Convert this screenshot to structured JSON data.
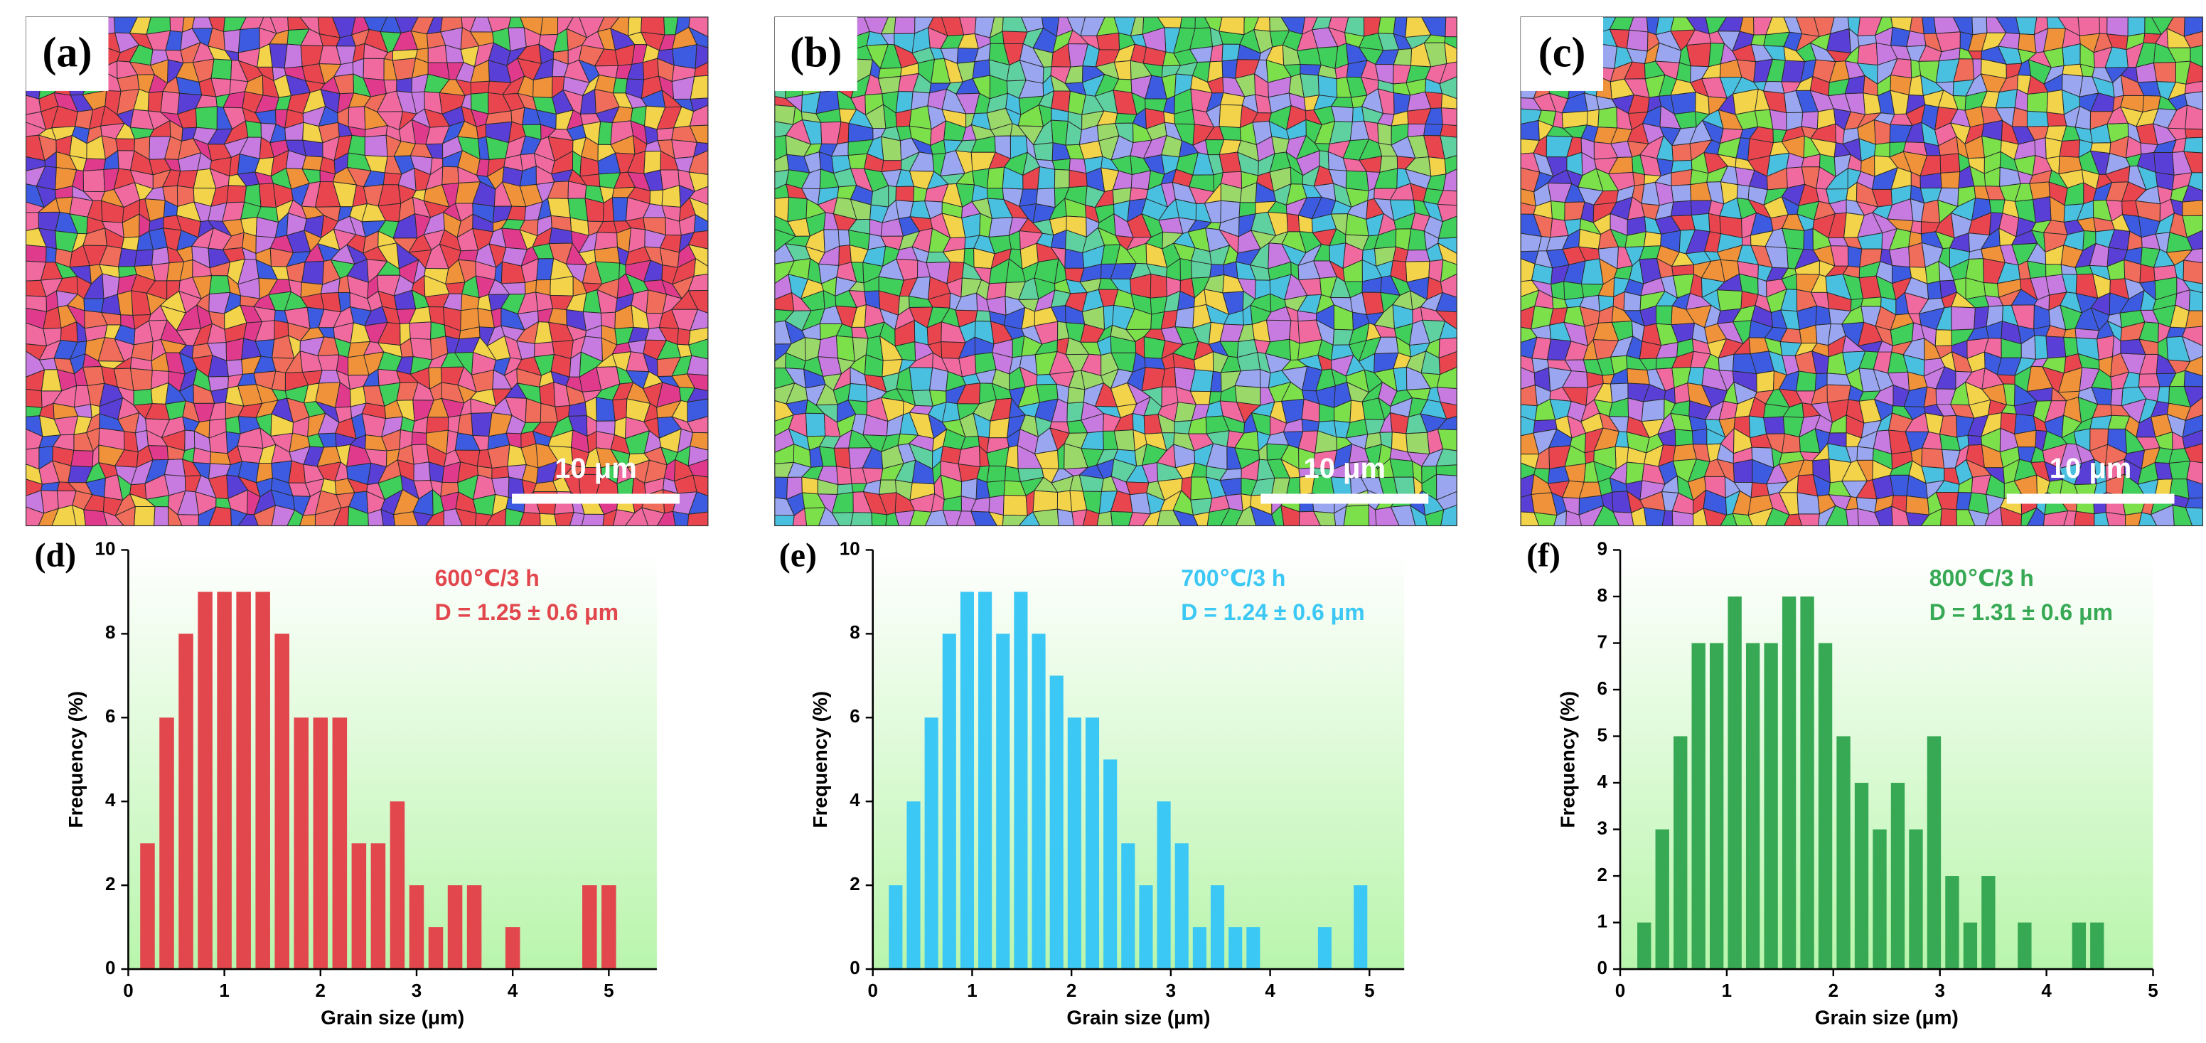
{
  "panels": [
    {
      "label": "(a)",
      "scale_bar": "10 μm"
    },
    {
      "label": "(b)",
      "scale_bar": "10 μm"
    },
    {
      "label": "(c)",
      "scale_bar": "10 μm"
    }
  ],
  "chart_data": [
    {
      "type": "histogram",
      "label": "(d)",
      "xlabel": "Grain size (μm)",
      "ylabel": "Frequency (%)",
      "annotations": [
        "600℃/3 h",
        "D = 1.25 ± 0.6 μm"
      ],
      "color": "#e2474e",
      "bins": [
        0.1,
        0.3,
        0.5,
        0.7,
        0.9,
        1.1,
        1.3,
        1.5,
        1.7,
        1.9,
        2.1,
        2.3,
        2.5,
        2.7,
        2.9,
        3.1,
        3.3,
        3.5,
        3.7,
        3.9,
        4.1,
        4.3,
        4.5,
        4.7,
        4.9,
        5.1
      ],
      "values": [
        3,
        6,
        8,
        9,
        9,
        9,
        9,
        8,
        6,
        6,
        6,
        3,
        3,
        4,
        2,
        1,
        2,
        2,
        0,
        1,
        0,
        0,
        0,
        2,
        2
      ],
      "xlim": [
        0,
        5.5
      ],
      "xticks": [
        0,
        1,
        2,
        3,
        4,
        5
      ],
      "ylim": [
        0,
        10
      ],
      "yticks": [
        0,
        2,
        4,
        6,
        8,
        10
      ]
    },
    {
      "type": "histogram",
      "label": "(e)",
      "xlabel": "Grain size (μm)",
      "ylabel": "Frequency (%)",
      "annotations": [
        "700℃/3 h",
        "D = 1.24 ± 0.6 μm"
      ],
      "color": "#3cc8f4",
      "bins": [
        0.14,
        0.32,
        0.5,
        0.68,
        0.86,
        1.04,
        1.22,
        1.4,
        1.58,
        1.76,
        1.94,
        2.12,
        2.3,
        2.48,
        2.66,
        2.84,
        3.02,
        3.2,
        3.38,
        3.56,
        3.74,
        3.92,
        4.1,
        4.28,
        4.46,
        4.64,
        4.82,
        5.0
      ],
      "values": [
        2,
        4,
        6,
        8,
        9,
        9,
        8,
        9,
        8,
        7,
        6,
        6,
        5,
        3,
        2,
        4,
        3,
        1,
        2,
        1,
        1,
        0,
        0,
        0,
        1,
        0,
        2
      ],
      "xlim": [
        0,
        5.35
      ],
      "xticks": [
        0,
        1,
        2,
        3,
        4,
        5
      ],
      "ylim": [
        0,
        10
      ],
      "yticks": [
        0,
        2,
        4,
        6,
        8,
        10
      ]
    },
    {
      "type": "histogram",
      "label": "(f)",
      "xlabel": "Grain size (μm)",
      "ylabel": "Frequency (%)",
      "annotations": [
        "800℃/3 h",
        "D = 1.31 ± 0.6 μm"
      ],
      "color": "#37a955",
      "bins": [
        0.14,
        0.31,
        0.48,
        0.65,
        0.82,
        0.99,
        1.16,
        1.33,
        1.5,
        1.67,
        1.84,
        2.01,
        2.18,
        2.35,
        2.52,
        2.69,
        2.86,
        3.03,
        3.2,
        3.37,
        3.54,
        3.71,
        3.88,
        4.05,
        4.22,
        4.39,
        4.56
      ],
      "values": [
        1,
        3,
        5,
        7,
        7,
        8,
        7,
        7,
        8,
        8,
        7,
        5,
        4,
        3,
        4,
        3,
        5,
        2,
        1,
        2,
        0,
        1,
        0,
        0,
        1,
        1
      ],
      "xlim": [
        0,
        5
      ],
      "xticks": [
        0,
        1,
        2,
        3,
        4,
        5
      ],
      "ylim": [
        0,
        9
      ],
      "yticks": [
        0,
        1,
        2,
        3,
        4,
        5,
        6,
        7,
        8,
        9
      ]
    }
  ]
}
